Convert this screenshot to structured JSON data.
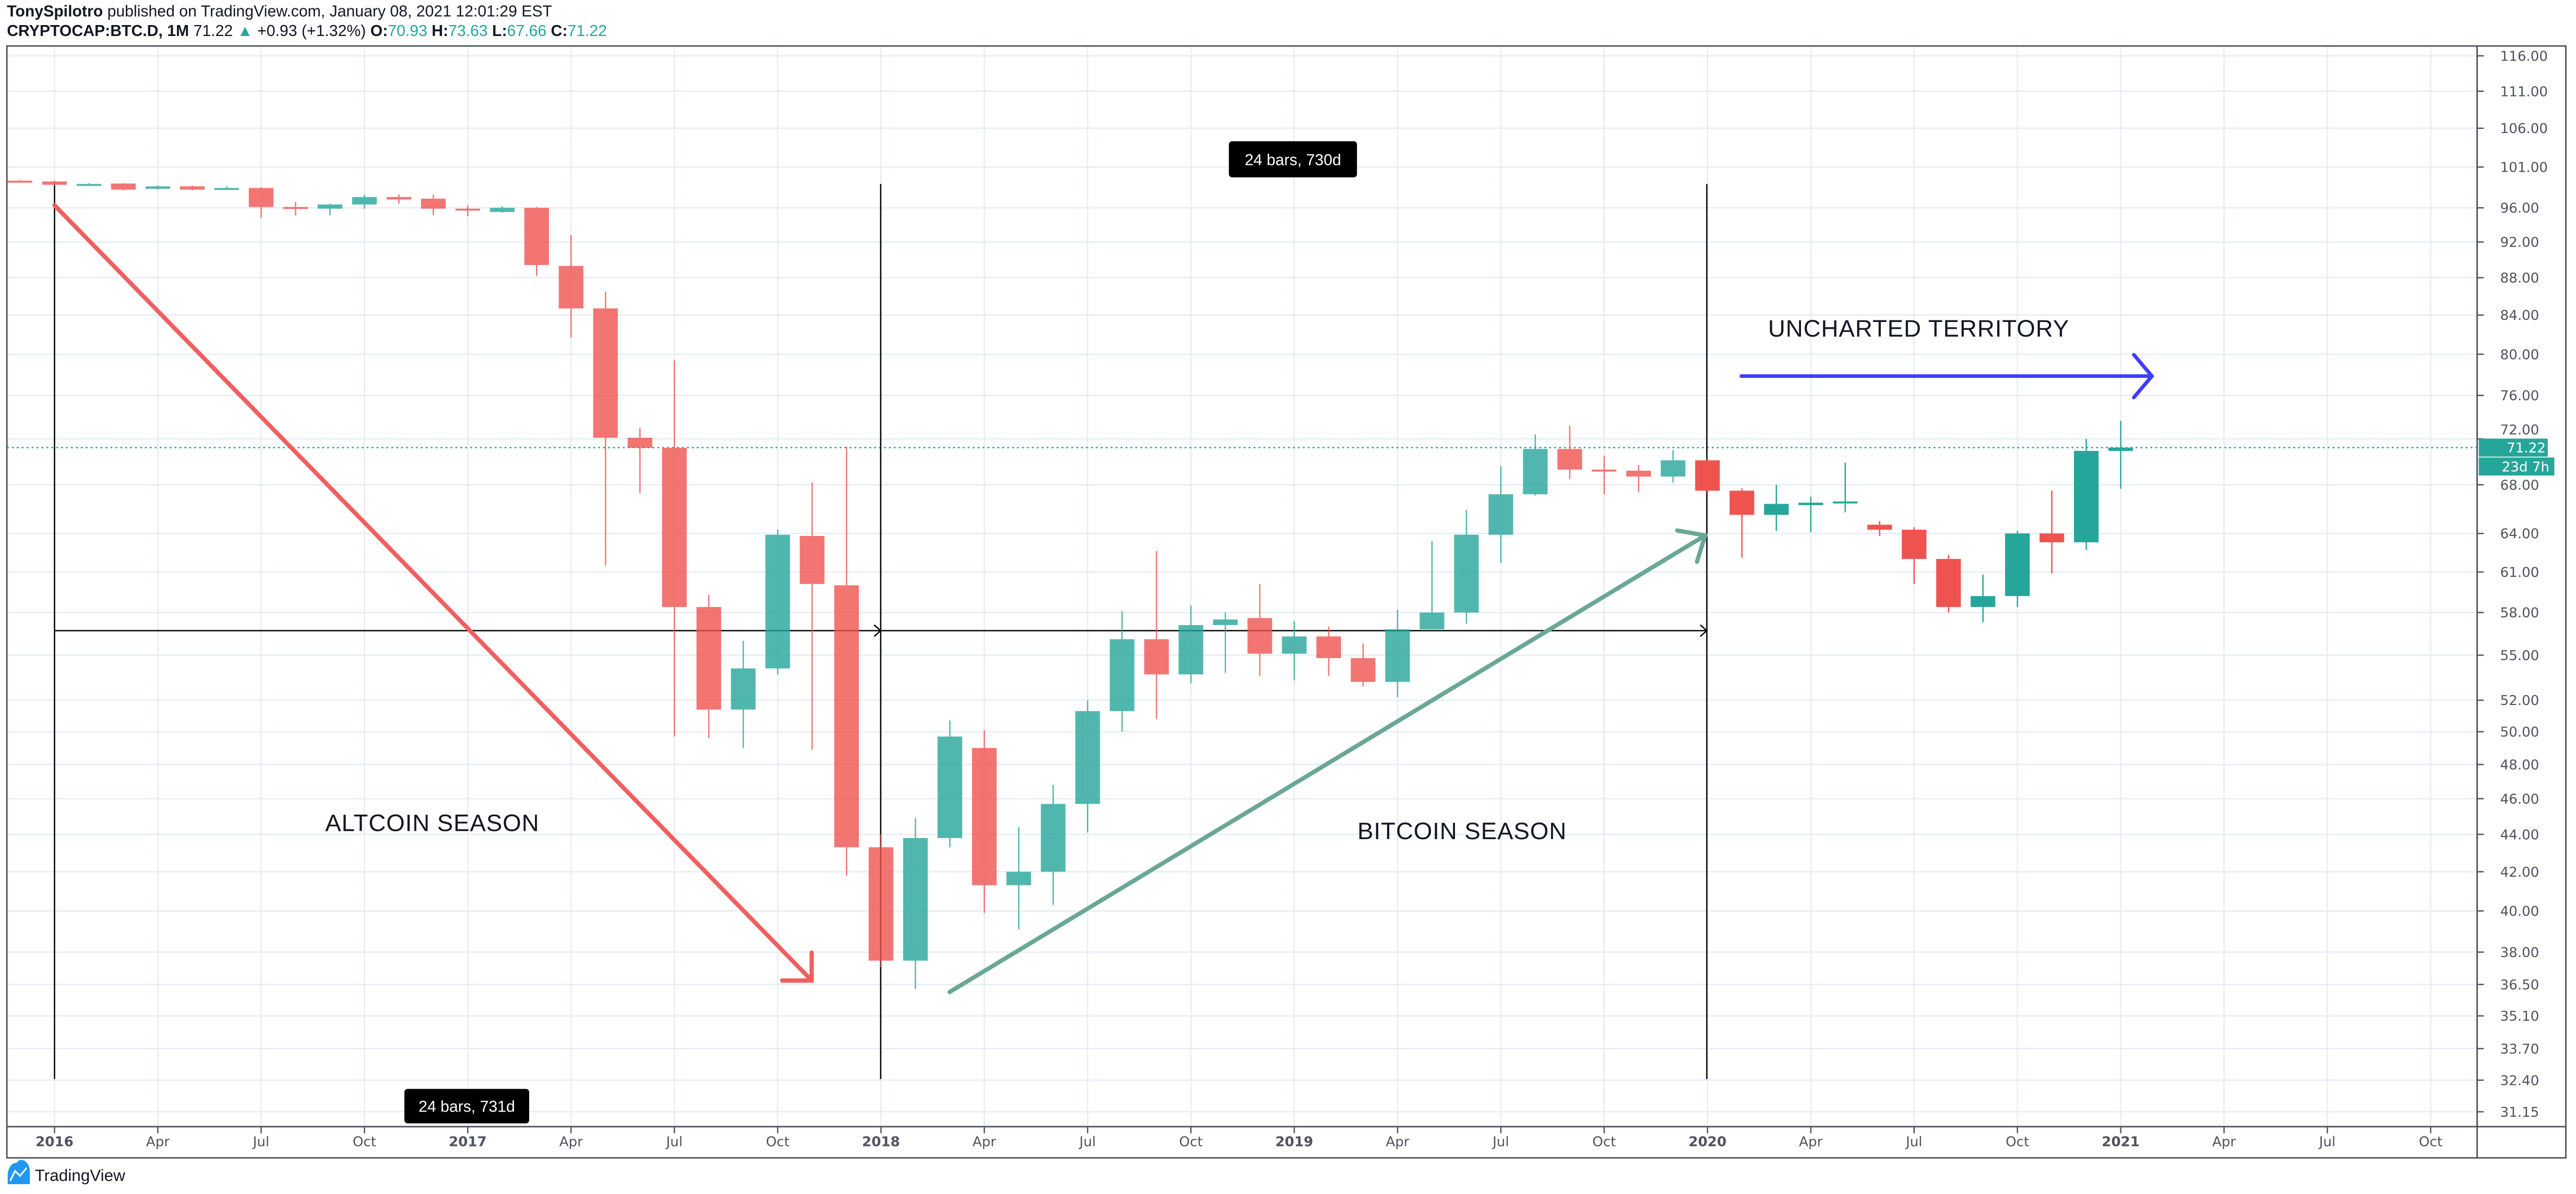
{
  "header": {
    "author": "TonySpilotro",
    "published": " published on TradingView.com, January 08, 2021 12:01:29 EST",
    "symbol": "CRYPTOCAP:BTC.D, 1M",
    "last": "71.22",
    "change": "+0.93 (+1.32%)",
    "o_label": "O:",
    "o": "70.93",
    "h_label": "H:",
    "h": "73.63",
    "l_label": "L:",
    "l": "67.66",
    "c_label": "C:",
    "c": "71.22"
  },
  "price_tag": {
    "value": "71.22",
    "countdown": "23d 7h"
  },
  "annotations": {
    "altcoin": "ALTCOIN SEASON",
    "bitcoin": "BITCOIN SEASON",
    "uncharted": "UNCHARTED TERRITORY",
    "range1": "24 bars, 731d",
    "range2": "24 bars, 730d"
  },
  "logo": "TradingView",
  "colors": {
    "up": "#26a69a",
    "down": "#ef5350",
    "arrow_down": "#f05f5f",
    "arrow_up": "#6aa795",
    "arrow_blue": "#3d3dff",
    "grid": "#e6edf3"
  },
  "chart_data": {
    "type": "candlestick",
    "y_scale": "log",
    "ylim": [
      31.15,
      116
    ],
    "y_ticks": [
      "116.00",
      "111.00",
      "106.00",
      "101.00",
      "96.00",
      "92.00",
      "88.00",
      "84.00",
      "80.00",
      "76.00",
      "72.00",
      "68.00",
      "64.00",
      "61.00",
      "58.00",
      "55.00",
      "52.00",
      "50.00",
      "48.00",
      "46.00",
      "44.00",
      "42.00",
      "40.00",
      "38.00",
      "36.50",
      "35.10",
      "33.70",
      "32.40",
      "31.15"
    ],
    "x_ticks": [
      "2016",
      "Apr",
      "Jul",
      "Oct",
      "2017",
      "Apr",
      "Jul",
      "Oct",
      "2018",
      "Apr",
      "Jul",
      "Oct",
      "2019",
      "Apr",
      "Jul",
      "Oct",
      "2020",
      "Apr",
      "Jul",
      "Oct",
      "2021",
      "Apr",
      "Jul",
      "Oct"
    ],
    "grid": true,
    "columns": [
      "month",
      "open",
      "high",
      "low",
      "close"
    ],
    "candles": [
      [
        "2015-12",
        99.3,
        99.4,
        99.1,
        99.2
      ],
      [
        "2016-01",
        99.2,
        99.3,
        98.7,
        98.8
      ],
      [
        "2016-02",
        98.8,
        99.0,
        98.7,
        98.9
      ],
      [
        "2016-03",
        98.95,
        99.0,
        98.1,
        98.2
      ],
      [
        "2016-04",
        98.3,
        98.7,
        98.2,
        98.6
      ],
      [
        "2016-05",
        98.6,
        98.7,
        98.1,
        98.2
      ],
      [
        "2016-06",
        98.2,
        98.6,
        98.2,
        98.4
      ],
      [
        "2016-07",
        98.4,
        98.5,
        94.8,
        96.1
      ],
      [
        "2016-08",
        96.1,
        96.7,
        95.1,
        96.0
      ],
      [
        "2016-09",
        95.9,
        96.5,
        95.1,
        96.4
      ],
      [
        "2016-10",
        96.4,
        97.6,
        95.9,
        97.3
      ],
      [
        "2016-11",
        97.3,
        97.6,
        96.5,
        97.0
      ],
      [
        "2016-12",
        97.1,
        97.6,
        95.1,
        95.9
      ],
      [
        "2017-01",
        95.9,
        96.3,
        95.0,
        95.7
      ],
      [
        "2017-02",
        95.5,
        96.2,
        95.4,
        96.0
      ],
      [
        "2017-03",
        96.0,
        96.1,
        88.2,
        89.4
      ],
      [
        "2017-04",
        89.3,
        92.8,
        81.7,
        84.7
      ],
      [
        "2017-05",
        84.7,
        86.5,
        61.5,
        72.1
      ],
      [
        "2017-06",
        72.1,
        73.0,
        67.3,
        71.2
      ],
      [
        "2017-07",
        71.2,
        79.4,
        49.7,
        58.4
      ],
      [
        "2017-08",
        58.4,
        59.3,
        49.6,
        51.4
      ],
      [
        "2017-09",
        51.4,
        56.0,
        49.0,
        54.1
      ],
      [
        "2017-10",
        54.1,
        64.3,
        53.7,
        63.9
      ],
      [
        "2017-11",
        63.8,
        68.2,
        48.9,
        60.1
      ],
      [
        "2017-12",
        60.0,
        71.3,
        41.8,
        43.3
      ],
      [
        "2018-01",
        43.3,
        44.0,
        37.3,
        37.6
      ],
      [
        "2018-02",
        37.6,
        44.9,
        36.3,
        43.8
      ],
      [
        "2018-03",
        43.8,
        50.7,
        43.3,
        49.7
      ],
      [
        "2018-04",
        49.0,
        50.1,
        39.9,
        41.3
      ],
      [
        "2018-05",
        41.3,
        44.4,
        39.1,
        42.0
      ],
      [
        "2018-06",
        42.0,
        46.8,
        40.3,
        45.7
      ],
      [
        "2018-07",
        45.7,
        52.0,
        44.1,
        51.3
      ],
      [
        "2018-08",
        51.3,
        58.1,
        50.0,
        56.1
      ],
      [
        "2018-09",
        56.1,
        62.6,
        50.8,
        53.7
      ],
      [
        "2018-10",
        53.7,
        58.5,
        53.1,
        57.1
      ],
      [
        "2018-11",
        57.1,
        58.0,
        53.8,
        57.5
      ],
      [
        "2018-12",
        57.6,
        60.1,
        53.6,
        55.1
      ],
      [
        "2019-01",
        55.1,
        57.4,
        53.3,
        56.3
      ],
      [
        "2019-02",
        56.3,
        57.0,
        53.6,
        54.8
      ],
      [
        "2019-03",
        54.8,
        55.8,
        52.9,
        53.2
      ],
      [
        "2019-04",
        53.2,
        58.2,
        52.2,
        56.8
      ],
      [
        "2019-05",
        56.8,
        63.4,
        56.6,
        58.0
      ],
      [
        "2019-06",
        58.0,
        65.9,
        57.2,
        63.9
      ],
      [
        "2019-07",
        63.9,
        69.6,
        61.7,
        67.2
      ],
      [
        "2019-08",
        67.2,
        72.4,
        67.1,
        71.1
      ],
      [
        "2019-09",
        71.1,
        73.2,
        68.5,
        69.3
      ],
      [
        "2019-10",
        69.3,
        70.5,
        67.2,
        69.2
      ],
      [
        "2019-11",
        69.2,
        69.7,
        67.4,
        68.7
      ],
      [
        "2019-12",
        68.7,
        71.0,
        68.2,
        70.1
      ],
      [
        "2020-01",
        70.1,
        70.3,
        67.3,
        67.5
      ],
      [
        "2020-02",
        67.5,
        67.7,
        62.1,
        65.5
      ],
      [
        "2020-03",
        65.5,
        68.0,
        64.2,
        66.4
      ],
      [
        "2020-04",
        66.3,
        67.0,
        64.1,
        66.5
      ],
      [
        "2020-05",
        66.5,
        69.9,
        65.7,
        66.6
      ],
      [
        "2020-06",
        64.7,
        65.0,
        63.8,
        64.3
      ],
      [
        "2020-07",
        64.3,
        64.5,
        60.1,
        62.0
      ],
      [
        "2020-08",
        62.0,
        62.3,
        58.0,
        58.4
      ],
      [
        "2020-09",
        58.4,
        60.8,
        57.3,
        59.2
      ],
      [
        "2020-10",
        59.2,
        64.2,
        58.4,
        64.0
      ],
      [
        "2020-11",
        64.0,
        67.5,
        60.9,
        63.3
      ],
      [
        "2020-12",
        63.3,
        72.0,
        62.7,
        70.93
      ],
      [
        "2021-01",
        70.93,
        73.63,
        67.66,
        71.22
      ]
    ],
    "last_price": 71.22
  }
}
